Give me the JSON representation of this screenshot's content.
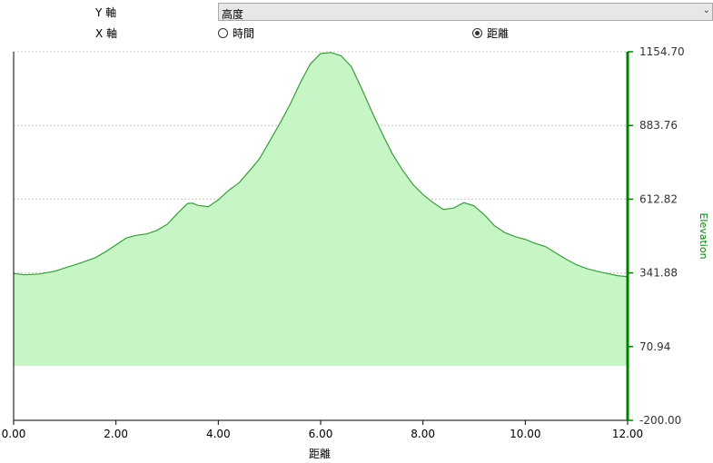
{
  "controls": {
    "y_axis_label": "Y 軸",
    "y_axis_selected": "高度",
    "x_axis_label": "X 軸",
    "x_options": [
      {
        "label": "時間",
        "checked": false
      },
      {
        "label": "距離",
        "checked": true
      }
    ]
  },
  "colors": {
    "line": "#3c9a3c",
    "fill": "#c6f5c6",
    "right_axis": "#008000",
    "grid": "#c8c8c8"
  },
  "chart_data": {
    "type": "area",
    "xlabel": "距離",
    "ylabel": "Elevation",
    "xlim": [
      0,
      12
    ],
    "ylim": [
      -200,
      1154.7
    ],
    "x_ticks": [
      0,
      2,
      4,
      6,
      8,
      10,
      12
    ],
    "x_tick_labels": [
      "0.00",
      "2.00",
      "4.00",
      "6.00",
      "8.00",
      "10.00",
      "12.00"
    ],
    "y_ticks": [
      -200,
      70.94,
      341.88,
      612.82,
      883.76,
      1154.7
    ],
    "y_tick_labels": [
      "-200.00",
      "70.94",
      "341.88",
      "612.82",
      "883.76",
      "1154.70"
    ],
    "fill_base": 0,
    "grid": true,
    "y_axis_position": "right",
    "x": [
      0,
      0.2,
      0.5,
      0.8,
      1.0,
      1.3,
      1.6,
      1.8,
      2.0,
      2.2,
      2.4,
      2.6,
      2.8,
      3.0,
      3.2,
      3.4,
      3.5,
      3.6,
      3.8,
      4.0,
      4.2,
      4.4,
      4.6,
      4.8,
      5.0,
      5.2,
      5.4,
      5.6,
      5.8,
      6.0,
      6.2,
      6.4,
      6.6,
      6.8,
      7.0,
      7.2,
      7.4,
      7.6,
      7.8,
      8.0,
      8.2,
      8.4,
      8.6,
      8.8,
      9.0,
      9.2,
      9.4,
      9.6,
      9.8,
      10.0,
      10.2,
      10.4,
      10.6,
      10.8,
      11.0,
      11.2,
      11.4,
      11.6,
      11.8,
      12.0
    ],
    "values": [
      340,
      335,
      338,
      348,
      360,
      378,
      398,
      420,
      445,
      470,
      480,
      485,
      498,
      520,
      560,
      597,
      598,
      590,
      585,
      610,
      645,
      672,
      715,
      760,
      825,
      890,
      960,
      1040,
      1110,
      1148,
      1152,
      1140,
      1100,
      1020,
      935,
      855,
      780,
      720,
      668,
      630,
      600,
      575,
      580,
      600,
      588,
      555,
      515,
      490,
      475,
      465,
      450,
      438,
      415,
      392,
      372,
      358,
      348,
      340,
      332,
      328
    ]
  }
}
